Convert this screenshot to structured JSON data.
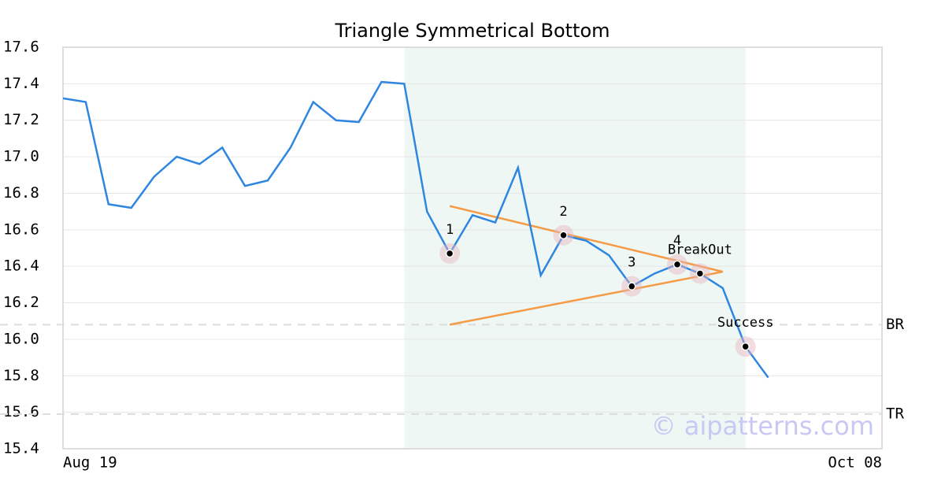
{
  "chart_data": {
    "type": "line",
    "title": "Triangle Symmetrical Bottom",
    "categories": [
      "Aug 19",
      null,
      null,
      null,
      null,
      null,
      null,
      null,
      null,
      null,
      null,
      null,
      null,
      null,
      null,
      null,
      null,
      null,
      null,
      null,
      null,
      null,
      null,
      null,
      null,
      null,
      null,
      null,
      null,
      null,
      null,
      null,
      null,
      null,
      null,
      null,
      "Oct 08"
    ],
    "values": [
      17.32,
      17.3,
      16.74,
      16.72,
      16.89,
      17.0,
      16.96,
      17.05,
      16.84,
      16.87,
      17.05,
      17.3,
      17.2,
      17.19,
      17.41,
      17.4,
      16.7,
      16.47,
      16.68,
      16.64,
      16.94,
      16.35,
      16.57,
      16.54,
      16.46,
      16.29,
      16.36,
      16.41,
      16.36,
      16.28,
      15.96,
      15.79,
      null,
      null,
      null,
      null,
      null
    ],
    "color": "#2f86e0",
    "ylim": [
      15.4,
      17.6
    ],
    "yticks": [
      15.4,
      15.6,
      15.8,
      {
        "value": 16,
        "label": "16.0"
      },
      16.2,
      16.4,
      16.6,
      16.8,
      {
        "value": 17,
        "label": "17.0"
      },
      17.2,
      17.4,
      17.6
    ],
    "grid": true,
    "shade": [
      15,
      30
    ],
    "shade_color": "#eef7f3",
    "trendlines": [
      {
        "x": [
          17,
          29
        ],
        "values": [
          16.73,
          16.37
        ]
      },
      {
        "x": [
          17,
          29
        ],
        "values": [
          16.08,
          16.37
        ]
      }
    ],
    "trendline_color": "#f59a45",
    "annotations": [
      {
        "label": "1",
        "x": 17,
        "value": 16.47
      },
      {
        "label": "2",
        "x": 22,
        "value": 16.57
      },
      {
        "label": "3",
        "x": 25,
        "value": 16.29
      },
      {
        "label": "4",
        "x": 27,
        "value": 16.41
      },
      {
        "label": "BreakOut",
        "x": 28,
        "value": 16.36
      },
      {
        "label": "Success",
        "x": 30,
        "value": 15.96
      }
    ],
    "hlines": [
      {
        "label": "BR",
        "value": 16.08
      },
      {
        "label": "TR",
        "value": 15.59
      }
    ],
    "watermark": "© aipatterns.com"
  }
}
